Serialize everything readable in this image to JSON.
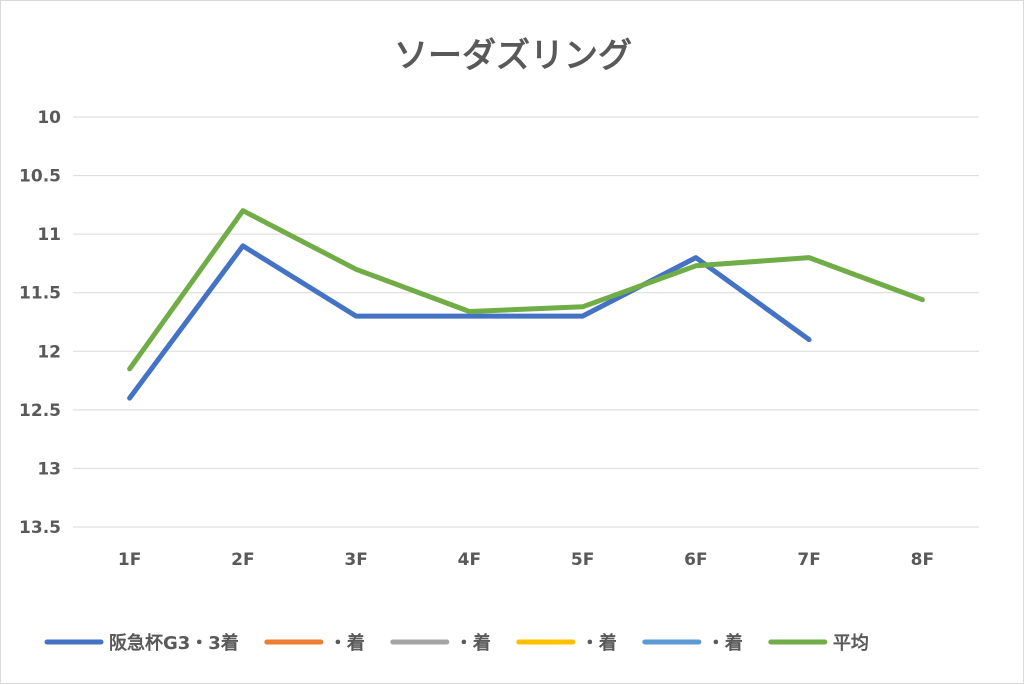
{
  "chart_data": {
    "type": "line",
    "title": "ソーダズリング",
    "categories": [
      "1F",
      "2F",
      "3F",
      "4F",
      "5F",
      "6F",
      "7F",
      "8F"
    ],
    "y_reversed": true,
    "ylim": [
      10,
      13.5
    ],
    "yticks": [
      "10",
      "10.5",
      "11",
      "11.5",
      "12",
      "12.5",
      "13",
      "13.5"
    ],
    "grid": true,
    "legend_position": "bottom",
    "series": [
      {
        "name": "阪急杯G3・3着",
        "color": "#4472c4",
        "values": [
          12.4,
          11.1,
          11.7,
          11.7,
          11.7,
          11.2,
          11.9,
          null
        ]
      },
      {
        "name": "・着",
        "color": "#ed7d31",
        "values": [
          null,
          null,
          null,
          null,
          null,
          null,
          null,
          null
        ]
      },
      {
        "name": "・着",
        "color": "#a5a5a5",
        "values": [
          null,
          null,
          null,
          null,
          null,
          null,
          null,
          null
        ]
      },
      {
        "name": "・着",
        "color": "#ffc000",
        "values": [
          null,
          null,
          null,
          null,
          null,
          null,
          null,
          null
        ]
      },
      {
        "name": "・着",
        "color": "#5b9bd5",
        "values": [
          null,
          null,
          null,
          null,
          null,
          null,
          null,
          null
        ]
      },
      {
        "name": "平均",
        "color": "#70ad47",
        "values": [
          12.15,
          10.8,
          11.3,
          11.66,
          11.62,
          11.27,
          11.2,
          11.56
        ]
      }
    ]
  }
}
